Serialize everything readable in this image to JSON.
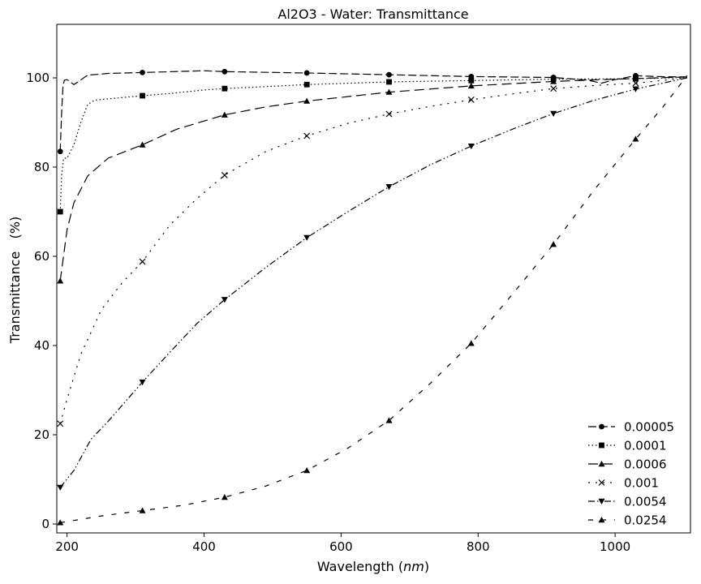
{
  "chart_data": {
    "type": "line",
    "title": "Al2O3 - Water: Transmittance",
    "xlabel_main": "Wavelength",
    "xlabel_unit": "nm",
    "ylabel": "Transmittance   (%)",
    "xlim": [
      185,
      1110
    ],
    "ylim": [
      -2,
      112
    ],
    "xticks": [
      "200",
      "400",
      "600",
      "800",
      "1000"
    ],
    "yticks": [
      "0",
      "20",
      "40",
      "60",
      "80",
      "100"
    ],
    "grid": false,
    "legend_position": "lower-right",
    "series": [
      {
        "name": "0.00005",
        "marker": "circle",
        "dash": "10,4",
        "markers_x": [
          190,
          310,
          430,
          550,
          670,
          790,
          910,
          1030
        ],
        "markers_y": [
          83.5,
          101.2,
          101.4,
          101.1,
          100.7,
          100.3,
          100.1,
          100.5
        ],
        "line": [
          [
            190,
            83.5
          ],
          [
            192,
            92
          ],
          [
            194,
            98
          ],
          [
            196,
            99.5
          ],
          [
            200,
            99.6
          ],
          [
            210,
            98.5
          ],
          [
            230,
            100.6
          ],
          [
            260,
            101.0
          ],
          [
            310,
            101.2
          ],
          [
            400,
            101.6
          ],
          [
            430,
            101.4
          ],
          [
            550,
            101.1
          ],
          [
            670,
            100.7
          ],
          [
            790,
            100.3
          ],
          [
            910,
            100.1
          ],
          [
            960,
            99.5
          ],
          [
            980,
            98.8
          ],
          [
            1000,
            99.6
          ],
          [
            1030,
            100.5
          ],
          [
            1060,
            100.3
          ],
          [
            1105,
            100.2
          ]
        ]
      },
      {
        "name": "0.0001",
        "marker": "square",
        "dash": "1.5,3",
        "markers_x": [
          190,
          310,
          430,
          550,
          670,
          790,
          910,
          1030
        ],
        "markers_y": [
          70,
          96,
          97.6,
          98.5,
          99.1,
          99.4,
          99.7,
          99.8
        ],
        "line": [
          [
            190,
            70
          ],
          [
            192,
            78
          ],
          [
            195,
            82
          ],
          [
            200,
            82
          ],
          [
            210,
            85
          ],
          [
            220,
            90
          ],
          [
            230,
            94
          ],
          [
            240,
            95
          ],
          [
            260,
            95.3
          ],
          [
            310,
            96
          ],
          [
            350,
            96.5
          ],
          [
            400,
            97.3
          ],
          [
            430,
            97.6
          ],
          [
            550,
            98.5
          ],
          [
            670,
            99.1
          ],
          [
            790,
            99.4
          ],
          [
            910,
            99.7
          ],
          [
            1030,
            99.8
          ],
          [
            1105,
            100.1
          ]
        ]
      },
      {
        "name": "0.0006",
        "marker": "triangle-up",
        "dash": "12,6",
        "markers_x": [
          190,
          310,
          430,
          550,
          670,
          790,
          910
        ],
        "markers_y": [
          54.5,
          85,
          91.7,
          94.8,
          96.8,
          98.2,
          99.2
        ],
        "line": [
          [
            190,
            54.5
          ],
          [
            200,
            66
          ],
          [
            210,
            72
          ],
          [
            230,
            78
          ],
          [
            260,
            82
          ],
          [
            310,
            85
          ],
          [
            360,
            88.5
          ],
          [
            430,
            91.7
          ],
          [
            490,
            93.5
          ],
          [
            550,
            94.8
          ],
          [
            670,
            96.8
          ],
          [
            790,
            98.2
          ],
          [
            910,
            99.2
          ],
          [
            1000,
            99.7
          ],
          [
            1105,
            100.2
          ]
        ]
      },
      {
        "name": "0.001",
        "marker": "x",
        "dash": "2,7",
        "markers_x": [
          190,
          310,
          430,
          550,
          670,
          790,
          910,
          1030
        ],
        "markers_y": [
          22.5,
          58.8,
          78.2,
          87,
          91.9,
          95.1,
          97.6,
          98.8
        ],
        "line": [
          [
            190,
            22.5
          ],
          [
            200,
            28
          ],
          [
            220,
            38
          ],
          [
            250,
            48
          ],
          [
            280,
            54
          ],
          [
            310,
            58.8
          ],
          [
            350,
            67
          ],
          [
            390,
            73
          ],
          [
            430,
            78.2
          ],
          [
            490,
            83.5
          ],
          [
            550,
            87
          ],
          [
            610,
            89.8
          ],
          [
            670,
            91.9
          ],
          [
            730,
            93.6
          ],
          [
            790,
            95.1
          ],
          [
            850,
            96.4
          ],
          [
            910,
            97.6
          ],
          [
            970,
            98.3
          ],
          [
            1030,
            98.8
          ],
          [
            1105,
            100
          ]
        ]
      },
      {
        "name": "0.0054",
        "marker": "triangle-down",
        "dash": "8,3,1.5,3,1.5,3",
        "markers_x": [
          190,
          310,
          430,
          550,
          670,
          790,
          910,
          1030
        ],
        "markers_y": [
          8.2,
          31.8,
          50.3,
          64.2,
          75.6,
          84.7,
          92,
          97.5
        ],
        "line": [
          [
            190,
            8.2
          ],
          [
            210,
            12
          ],
          [
            235,
            19
          ],
          [
            260,
            23
          ],
          [
            310,
            31.8
          ],
          [
            350,
            38.5
          ],
          [
            390,
            45
          ],
          [
            430,
            50.3
          ],
          [
            490,
            57.5
          ],
          [
            550,
            64.2
          ],
          [
            610,
            70
          ],
          [
            670,
            75.6
          ],
          [
            730,
            80.5
          ],
          [
            790,
            84.7
          ],
          [
            850,
            88.5
          ],
          [
            910,
            92
          ],
          [
            970,
            95
          ],
          [
            1030,
            97.5
          ],
          [
            1105,
            100
          ]
        ]
      },
      {
        "name": "0.0254",
        "marker": "triangle-up",
        "dash": "6,10",
        "markers_x": [
          190,
          310,
          430,
          550,
          670,
          790,
          910,
          1030
        ],
        "markers_y": [
          0.3,
          3,
          6,
          12,
          23.2,
          40.5,
          62.7,
          86.3
        ],
        "line": [
          [
            190,
            0.3
          ],
          [
            250,
            1.8
          ],
          [
            310,
            3
          ],
          [
            370,
            4.2
          ],
          [
            430,
            6
          ],
          [
            490,
            8.5
          ],
          [
            550,
            12
          ],
          [
            610,
            17
          ],
          [
            670,
            23.2
          ],
          [
            730,
            31.5
          ],
          [
            790,
            40.5
          ],
          [
            850,
            51.5
          ],
          [
            910,
            62.7
          ],
          [
            970,
            75
          ],
          [
            1030,
            86.3
          ],
          [
            1070,
            93.5
          ],
          [
            1105,
            100.5
          ]
        ]
      }
    ]
  }
}
